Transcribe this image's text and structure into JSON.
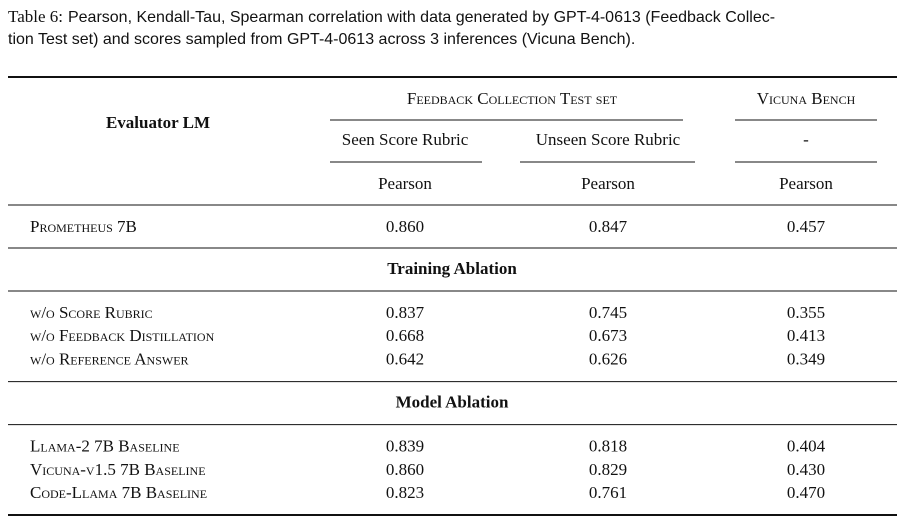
{
  "caption": {
    "label": "Table 6:",
    "lines": [
      "Pearson, Kendall-Tau, Spearman correlation with data generated by GPT-4-0613 (Feedback Collec-",
      "tion Test set) and scores sampled from GPT-4-0613 across 3 inferences (Vicuna Bench)."
    ]
  },
  "table": {
    "header": {
      "evaluator": "Evaluator LM",
      "groups": [
        "Feedback Collection Test set",
        "Vicuna Bench"
      ],
      "subgroups": [
        "Seen Score Rubric",
        "Unseen Score Rubric",
        "-"
      ],
      "metrics": [
        "Pearson",
        "Pearson",
        "Pearson"
      ]
    },
    "main": {
      "name": "Prometheus 7B",
      "values": [
        "0.860",
        "0.847",
        "0.457"
      ]
    },
    "sections": [
      {
        "title": "Training Ablation",
        "rows": [
          {
            "name": "w/o Score Rubric",
            "values": [
              "0.837",
              "0.745",
              "0.355"
            ]
          },
          {
            "name": "w/o Feedback Distillation",
            "values": [
              "0.668",
              "0.673",
              "0.413"
            ]
          },
          {
            "name": "w/o Reference Answer",
            "values": [
              "0.642",
              "0.626",
              "0.349"
            ]
          }
        ]
      },
      {
        "title": "Model Ablation",
        "rows": [
          {
            "name": "Llama-2 7B Baseline",
            "values": [
              "0.839",
              "0.818",
              "0.404"
            ]
          },
          {
            "name": "Vicuna-v1.5 7B Baseline",
            "values": [
              "0.860",
              "0.829",
              "0.430"
            ]
          },
          {
            "name": "Code-Llama 7B Baseline",
            "values": [
              "0.823",
              "0.761",
              "0.470"
            ]
          }
        ]
      }
    ]
  }
}
